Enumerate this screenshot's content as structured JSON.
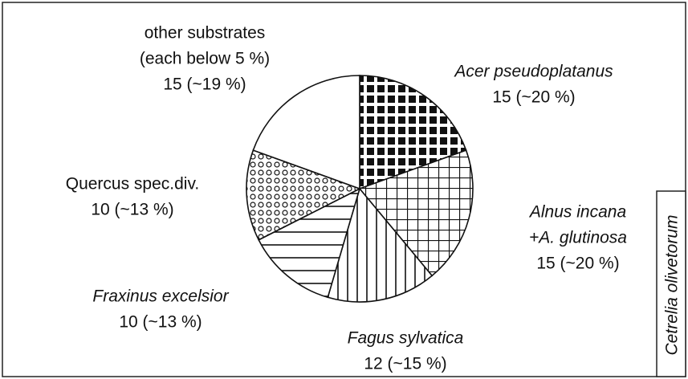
{
  "chart_data": {
    "type": "pie",
    "categories": [
      [
        "Acer pseudoplatanus"
      ],
      [
        "Alnus incana",
        "+A. glutinosa"
      ],
      [
        "Fagus sylvatica"
      ],
      [
        "Fraxinus excelsior"
      ],
      [
        "Quercus spec.div."
      ],
      [
        "other substrates",
        "(each below 5 %)"
      ]
    ],
    "values": [
      15,
      15,
      12,
      10,
      10,
      15
    ],
    "value_labels": [
      "15 (~20 %)",
      "15 (~20 %)",
      "12 (~15 %)",
      "10 (~13 %)",
      "10 (~13 %)",
      "15 (~19 %)"
    ],
    "italic": [
      true,
      true,
      true,
      true,
      false,
      false
    ],
    "patterns": [
      "checker",
      "grid",
      "vertical",
      "horizontal",
      "dots",
      "none"
    ],
    "side_label": "Cetrelia olivetorum"
  }
}
